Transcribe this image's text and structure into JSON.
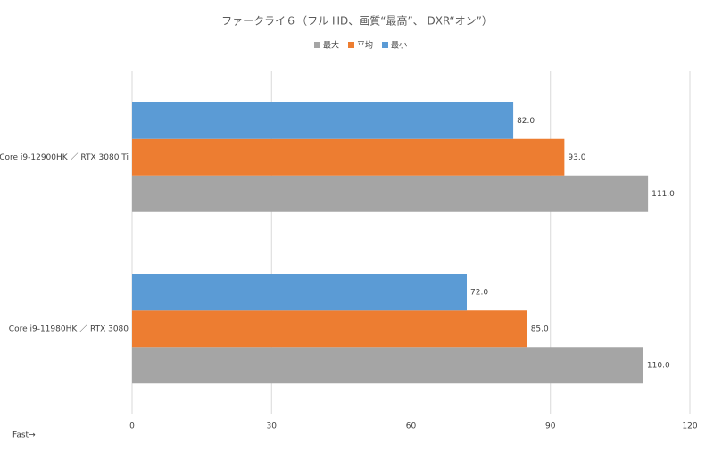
{
  "chart_data": {
    "type": "bar",
    "orientation": "horizontal",
    "title": "ファークライ６（フル HD、画質“最高”、 DXR“オン”）",
    "annotation": "Fast→",
    "categories": [
      "Core i9-12900HK ／ RTX 3080 Ti",
      "Core i9-11980HK ／ RTX 3080"
    ],
    "series": [
      {
        "name": "最大",
        "color": "#a5a5a5",
        "values": [
          111,
          110
        ],
        "value_labels": [
          "111.0",
          "110.0"
        ]
      },
      {
        "name": "平均",
        "color": "#ed7d31",
        "values": [
          93,
          85
        ],
        "value_labels": [
          "93.0",
          "85.0"
        ]
      },
      {
        "name": "最小",
        "color": "#5b9bd5",
        "values": [
          82,
          72
        ],
        "value_labels": [
          "82.0",
          "72.0"
        ]
      }
    ],
    "xlim": [
      0,
      120
    ],
    "xticks": [
      0,
      30,
      60,
      90,
      120
    ],
    "grid": true
  }
}
